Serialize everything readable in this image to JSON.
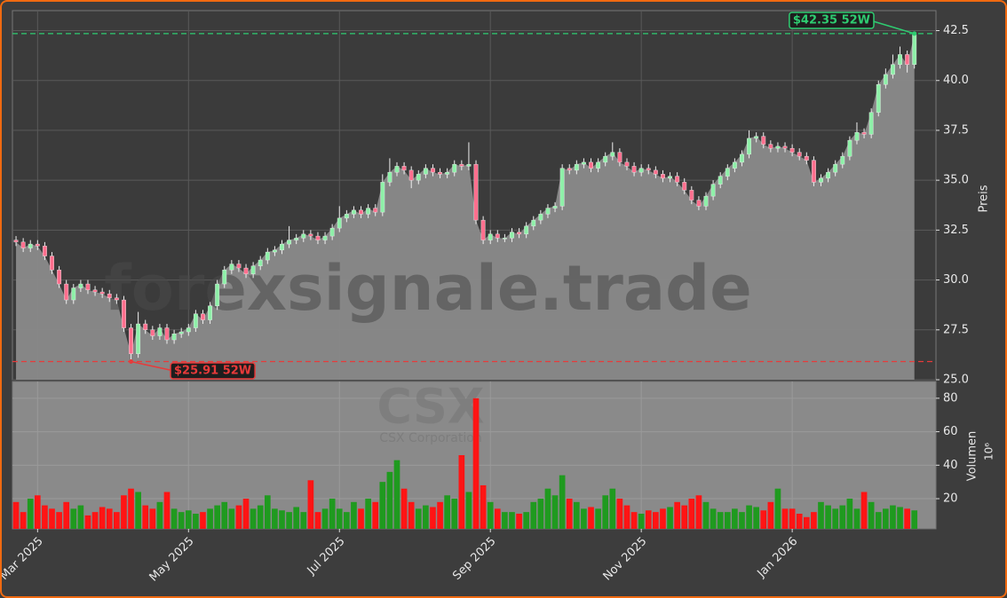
{
  "chart_data": {
    "type": "candlestick",
    "watermark": "forexsignale.trade",
    "title": "CSX",
    "subtitle": "CSX Corporation",
    "x": [
      0,
      1,
      2,
      3,
      4,
      5,
      6,
      7,
      8,
      9,
      10,
      11,
      12,
      13,
      14,
      15,
      16,
      17,
      18,
      19,
      20,
      21,
      22,
      23,
      24,
      25,
      26,
      27,
      28,
      29,
      30,
      31,
      32,
      33,
      34,
      35,
      36,
      37,
      38,
      39,
      40,
      41,
      42,
      43,
      44,
      45,
      46,
      47,
      48,
      49,
      50,
      51,
      52,
      53,
      54,
      55,
      56,
      57,
      58,
      59,
      60,
      61,
      62,
      63,
      64,
      65,
      66,
      67,
      68,
      69,
      70,
      71,
      72,
      73,
      74,
      75,
      76,
      77,
      78,
      79,
      80,
      81,
      82,
      83,
      84,
      85,
      86,
      87,
      88,
      89,
      90,
      91,
      92,
      93,
      94,
      95,
      96,
      97,
      98,
      99,
      100,
      101,
      102,
      103,
      104,
      105,
      106,
      107,
      108,
      109,
      110,
      111,
      112,
      113,
      114,
      115,
      116,
      117,
      118,
      119,
      120,
      121,
      122,
      123,
      124,
      125
    ],
    "xlim": [
      -0.5,
      128
    ],
    "xticks": [
      {
        "value": 3,
        "label": "Mar 2025"
      },
      {
        "value": 24,
        "label": "May 2025"
      },
      {
        "value": 45,
        "label": "Jul 2025"
      },
      {
        "value": 66,
        "label": "Sep 2025"
      },
      {
        "value": 87,
        "label": "Nov 2025"
      },
      {
        "value": 108,
        "label": "Jan 2026"
      }
    ],
    "open": [
      32.0,
      31.9,
      31.6,
      31.8,
      31.7,
      31.2,
      30.5,
      29.8,
      29.0,
      29.6,
      29.8,
      29.5,
      29.4,
      29.3,
      29.1,
      29.0,
      27.6,
      26.3,
      27.8,
      27.5,
      27.2,
      27.6,
      27.0,
      27.3,
      27.4,
      27.6,
      28.3,
      28.0,
      28.7,
      29.8,
      30.5,
      30.8,
      30.6,
      30.3,
      30.7,
      31.0,
      31.4,
      31.5,
      31.8,
      32.0,
      32.1,
      32.3,
      32.2,
      32.0,
      32.2,
      32.6,
      33.1,
      33.3,
      33.5,
      33.3,
      33.6,
      33.4,
      34.9,
      35.4,
      35.7,
      35.5,
      35.0,
      35.3,
      35.6,
      35.4,
      35.3,
      35.4,
      35.8,
      35.7,
      35.8,
      33.0,
      32.0,
      32.3,
      32.1,
      32.1,
      32.4,
      32.3,
      32.7,
      33.0,
      33.3,
      33.6,
      33.7,
      35.6,
      35.5,
      35.8,
      35.9,
      35.6,
      35.9,
      36.2,
      36.4,
      35.9,
      35.7,
      35.4,
      35.6,
      35.5,
      35.3,
      35.1,
      35.2,
      34.9,
      34.5,
      34.0,
      33.7,
      34.2,
      34.8,
      35.2,
      35.6,
      35.9,
      36.3,
      37.1,
      37.2,
      36.8,
      36.6,
      36.7,
      36.6,
      36.4,
      36.2,
      36.0,
      34.9,
      35.1,
      35.4,
      35.8,
      36.2,
      37.0,
      37.4,
      37.3,
      38.4,
      39.8,
      40.3,
      40.8,
      41.3,
      40.8
    ],
    "high": [
      32.2,
      32.1,
      32.0,
      32.0,
      31.9,
      31.4,
      30.7,
      30.0,
      29.8,
      30.0,
      30.0,
      29.7,
      29.6,
      29.5,
      29.3,
      29.2,
      27.8,
      28.4,
      28.0,
      27.7,
      27.8,
      27.8,
      27.5,
      27.6,
      27.8,
      28.5,
      28.5,
      28.9,
      30.0,
      30.7,
      31.0,
      31.0,
      30.8,
      30.9,
      31.2,
      31.6,
      31.7,
      32.0,
      32.7,
      32.3,
      32.5,
      32.5,
      32.4,
      32.4,
      32.8,
      33.7,
      33.5,
      33.7,
      33.7,
      33.8,
      33.8,
      35.3,
      36.1,
      35.9,
      35.9,
      35.7,
      35.5,
      35.8,
      35.8,
      35.6,
      35.6,
      36.0,
      36.0,
      36.9,
      36.0,
      33.2,
      32.5,
      32.5,
      32.3,
      32.6,
      32.6,
      32.9,
      33.2,
      33.5,
      33.8,
      33.9,
      35.8,
      35.8,
      36.0,
      36.1,
      36.1,
      36.1,
      36.4,
      36.9,
      36.6,
      36.1,
      35.9,
      35.8,
      35.8,
      35.7,
      35.5,
      35.4,
      35.4,
      35.1,
      34.7,
      34.2,
      34.4,
      35.0,
      35.4,
      35.8,
      36.1,
      36.5,
      37.5,
      37.4,
      37.4,
      37.0,
      36.9,
      36.9,
      36.8,
      36.6,
      36.4,
      36.2,
      35.3,
      35.6,
      36.0,
      36.4,
      37.2,
      37.9,
      37.6,
      38.6,
      40.0,
      40.6,
      41.3,
      41.7,
      41.5,
      42.35
    ],
    "low": [
      31.7,
      31.4,
      31.4,
      31.5,
      31.0,
      30.3,
      29.6,
      28.8,
      28.8,
      29.4,
      29.3,
      29.2,
      29.1,
      28.9,
      28.8,
      27.4,
      25.91,
      26.1,
      27.3,
      27.0,
      27.0,
      26.8,
      26.8,
      27.1,
      27.2,
      27.4,
      27.8,
      27.8,
      28.5,
      29.6,
      30.3,
      30.4,
      30.1,
      30.1,
      30.5,
      30.8,
      31.2,
      31.3,
      31.6,
      31.8,
      31.9,
      32.0,
      31.8,
      31.8,
      32.0,
      32.4,
      32.9,
      33.1,
      33.1,
      33.1,
      33.2,
      33.2,
      34.7,
      35.2,
      35.3,
      34.6,
      34.8,
      35.1,
      35.2,
      35.1,
      35.1,
      35.2,
      35.5,
      35.5,
      32.8,
      31.8,
      31.8,
      31.9,
      31.9,
      31.9,
      32.1,
      32.1,
      32.5,
      32.8,
      33.1,
      33.4,
      33.5,
      35.3,
      35.3,
      35.6,
      35.4,
      35.4,
      35.7,
      36.0,
      35.7,
      35.5,
      35.2,
      35.2,
      35.3,
      35.1,
      34.9,
      34.9,
      34.7,
      34.3,
      33.8,
      33.5,
      33.5,
      34.0,
      34.6,
      35.0,
      35.4,
      35.7,
      36.1,
      36.9,
      36.6,
      36.4,
      36.4,
      36.4,
      36.2,
      36.0,
      35.8,
      34.7,
      34.7,
      34.9,
      35.2,
      35.6,
      36.0,
      36.8,
      37.1,
      37.1,
      38.2,
      39.6,
      40.1,
      40.6,
      40.4,
      40.6
    ],
    "close": [
      31.9,
      31.6,
      31.8,
      31.7,
      31.2,
      30.5,
      29.8,
      29.0,
      29.6,
      29.8,
      29.5,
      29.4,
      29.3,
      29.1,
      29.0,
      27.6,
      26.3,
      27.8,
      27.5,
      27.2,
      27.6,
      27.0,
      27.3,
      27.4,
      27.6,
      28.3,
      28.0,
      28.7,
      29.8,
      30.5,
      30.8,
      30.6,
      30.3,
      30.7,
      31.0,
      31.4,
      31.5,
      31.8,
      32.0,
      32.1,
      32.3,
      32.2,
      32.0,
      32.2,
      32.6,
      33.1,
      33.3,
      33.5,
      33.3,
      33.6,
      33.4,
      34.9,
      35.4,
      35.7,
      35.5,
      35.0,
      35.3,
      35.6,
      35.4,
      35.3,
      35.4,
      35.8,
      35.7,
      35.8,
      33.0,
      32.0,
      32.3,
      32.1,
      32.1,
      32.4,
      32.3,
      32.7,
      33.0,
      33.3,
      33.6,
      33.7,
      35.6,
      35.5,
      35.8,
      35.9,
      35.6,
      35.9,
      36.2,
      36.4,
      35.9,
      35.7,
      35.4,
      35.6,
      35.5,
      35.3,
      35.1,
      35.2,
      34.9,
      34.5,
      34.0,
      33.7,
      34.2,
      34.8,
      35.2,
      35.6,
      35.9,
      36.3,
      37.1,
      37.2,
      36.8,
      36.6,
      36.7,
      36.6,
      36.4,
      36.2,
      36.0,
      34.9,
      35.1,
      35.4,
      35.8,
      36.2,
      37.0,
      37.4,
      37.3,
      38.4,
      39.8,
      40.3,
      40.8,
      41.3,
      40.8,
      42.3
    ],
    "volume": [
      18,
      12,
      20,
      22,
      16,
      14,
      12,
      18,
      14,
      16,
      10,
      12,
      15,
      14,
      12,
      22,
      26,
      24,
      16,
      14,
      18,
      24,
      14,
      12,
      13,
      11,
      12,
      14,
      16,
      18,
      14,
      16,
      20,
      14,
      16,
      22,
      14,
      13,
      12,
      15,
      12,
      31,
      12,
      14,
      20,
      14,
      12,
      18,
      14,
      20,
      18,
      30,
      36,
      43,
      26,
      18,
      14,
      16,
      15,
      18,
      22,
      20,
      46,
      24,
      80,
      28,
      18,
      14,
      12,
      12,
      11,
      12,
      18,
      20,
      26,
      22,
      34,
      20,
      18,
      14,
      15,
      14,
      22,
      26,
      20,
      16,
      12,
      11,
      13,
      12,
      14,
      15,
      18,
      16,
      20,
      22,
      18,
      14,
      12,
      12,
      14,
      12,
      16,
      15,
      13,
      18,
      26,
      14,
      14,
      11,
      9,
      12,
      18,
      16,
      14,
      16,
      20,
      14,
      24,
      18,
      12,
      14,
      16,
      15,
      14,
      13
    ],
    "ylim": [
      25,
      43.5
    ],
    "yticks": [
      {
        "value": 25,
        "label": "25.0"
      },
      {
        "value": 27.5,
        "label": "27.5"
      },
      {
        "value": 30,
        "label": "30.0"
      },
      {
        "value": 32.5,
        "label": "32.5"
      },
      {
        "value": 35,
        "label": "35.0"
      },
      {
        "value": 37.5,
        "label": "37.5"
      },
      {
        "value": 40,
        "label": "40.0"
      },
      {
        "value": 42.5,
        "label": "42.5"
      }
    ],
    "ylabel": "Preis",
    "volume_ylim": [
      2,
      90
    ],
    "volume_yticks": [
      20,
      40,
      60,
      80
    ],
    "volume_label": "Volumen",
    "volume_unit": "10⁶",
    "up_color": "#8ef0a8",
    "down_color": "#ff6f8e",
    "volume_up_color": "#1f9a1f",
    "volume_down_color": "#ff1414",
    "grid": true,
    "high_line": {
      "value": 42.35,
      "label": "$42.35 52W",
      "color": "#2ecc71"
    },
    "low_line": {
      "value": 25.91,
      "label": "$25.91 52W",
      "color": "#e83a3a"
    }
  }
}
